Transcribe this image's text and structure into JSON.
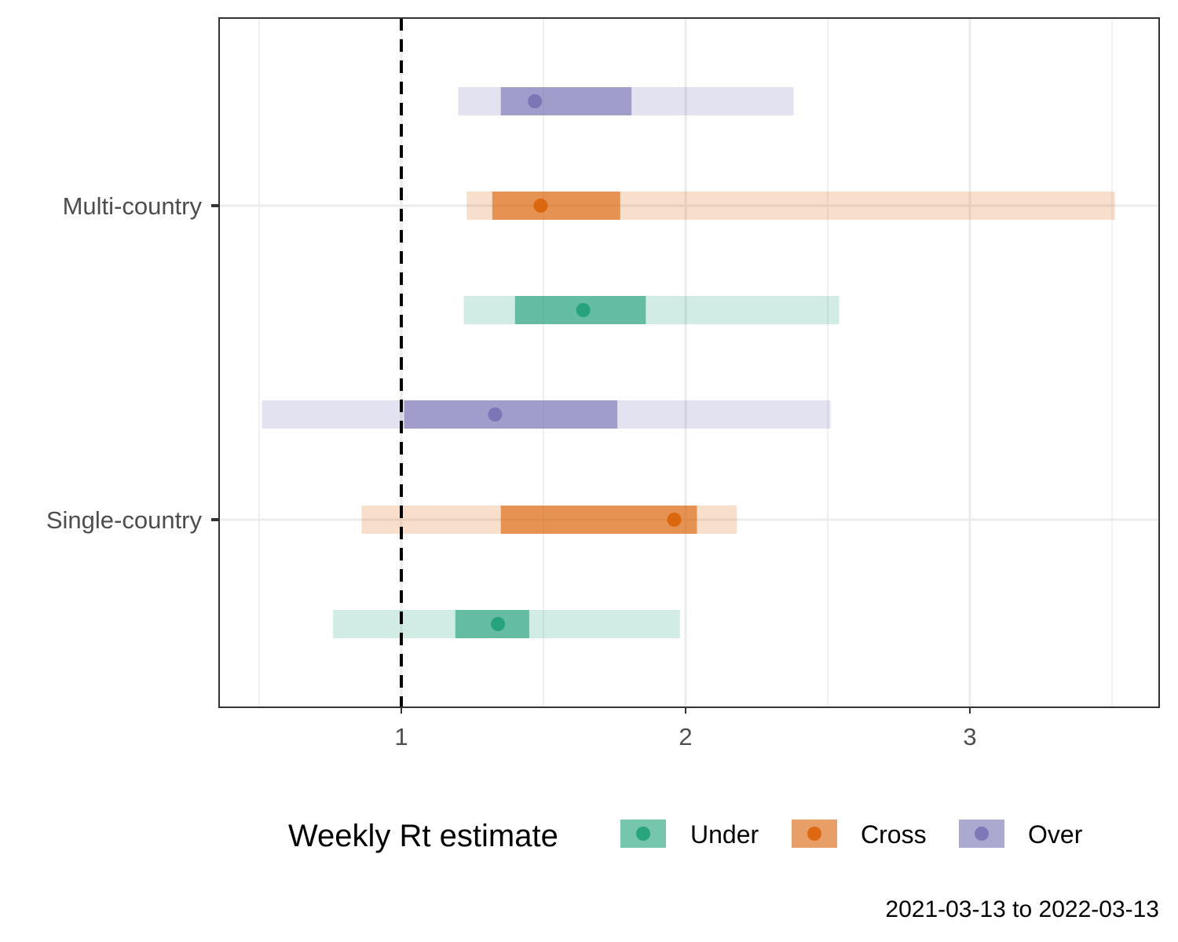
{
  "chart_data": {
    "type": "interval",
    "x_ticks": [
      1,
      2,
      3
    ],
    "xlim": [
      0.36,
      3.66
    ],
    "y_categories": [
      "Multi-country",
      "Single-country"
    ],
    "reference_line": {
      "x": 1,
      "style": "dashed",
      "color": "#000000"
    },
    "legend": {
      "title": "Weekly Rt estimate",
      "placement": "bottom",
      "items": [
        {
          "name": "Under",
          "color": "#1b9e77"
        },
        {
          "name": "Cross",
          "color": "#d95f02"
        },
        {
          "name": "Over",
          "color": "#7570b3"
        }
      ]
    },
    "caption": "2021-03-13 to 2022-03-13",
    "grid": true,
    "intervals": [
      {
        "group": "Multi-country",
        "series": "Over",
        "outer": [
          1.2,
          2.38
        ],
        "inner": [
          1.35,
          1.81
        ],
        "point": 1.47
      },
      {
        "group": "Multi-country",
        "series": "Cross",
        "outer": [
          1.23,
          3.51
        ],
        "inner": [
          1.32,
          1.77
        ],
        "point": 1.49
      },
      {
        "group": "Multi-country",
        "series": "Under",
        "outer": [
          1.22,
          2.54
        ],
        "inner": [
          1.4,
          1.86
        ],
        "point": 1.64
      },
      {
        "group": "Single-country",
        "series": "Over",
        "outer": [
          0.51,
          2.51
        ],
        "inner": [
          1.01,
          1.76
        ],
        "point": 1.33
      },
      {
        "group": "Single-country",
        "series": "Cross",
        "outer": [
          0.86,
          2.18
        ],
        "inner": [
          1.35,
          2.04
        ],
        "point": 1.96
      },
      {
        "group": "Single-country",
        "series": "Under",
        "outer": [
          0.76,
          1.98
        ],
        "inner": [
          1.19,
          1.45
        ],
        "point": 1.34
      }
    ]
  }
}
